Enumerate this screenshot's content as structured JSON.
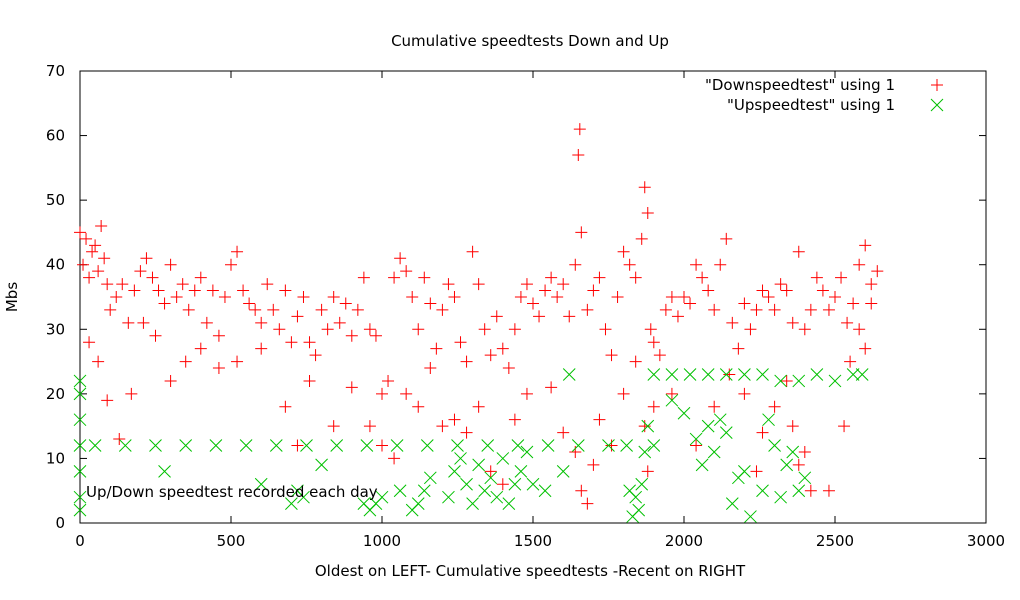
{
  "chart_data": {
    "type": "scatter",
    "title": "Cumulative speedtests Down and Up",
    "xlabel": "Oldest on LEFT- Cumulative speedtests -Recent on RIGHT",
    "ylabel": "Mbs",
    "xlim": [
      0,
      3000
    ],
    "ylim": [
      0,
      70
    ],
    "x_ticks": [
      "0",
      "500",
      "1000",
      "1500",
      "2000",
      "2500",
      "3000"
    ],
    "y_ticks": [
      "0",
      "10",
      "20",
      "30",
      "40",
      "50",
      "60",
      "70"
    ],
    "grid": false,
    "legend_position": "top-right",
    "annotation": "Up/Down speedtest recorded each day",
    "series": [
      {
        "name": "\"Downspeedtest\" using 1",
        "marker": "plus",
        "color": "#ff0000",
        "points": [
          [
            0,
            45
          ],
          [
            10,
            40
          ],
          [
            20,
            44
          ],
          [
            30,
            38
          ],
          [
            40,
            42
          ],
          [
            50,
            43
          ],
          [
            60,
            39
          ],
          [
            70,
            46
          ],
          [
            80,
            41
          ],
          [
            90,
            37
          ],
          [
            100,
            33
          ],
          [
            120,
            35
          ],
          [
            140,
            37
          ],
          [
            160,
            31
          ],
          [
            180,
            36
          ],
          [
            200,
            39
          ],
          [
            220,
            41
          ],
          [
            240,
            38
          ],
          [
            260,
            36
          ],
          [
            280,
            34
          ],
          [
            300,
            40
          ],
          [
            320,
            35
          ],
          [
            340,
            37
          ],
          [
            360,
            33
          ],
          [
            380,
            36
          ],
          [
            400,
            38
          ],
          [
            420,
            31
          ],
          [
            440,
            36
          ],
          [
            460,
            29
          ],
          [
            480,
            35
          ],
          [
            500,
            40
          ],
          [
            520,
            42
          ],
          [
            540,
            36
          ],
          [
            560,
            34
          ],
          [
            580,
            33
          ],
          [
            600,
            31
          ],
          [
            620,
            37
          ],
          [
            640,
            33
          ],
          [
            660,
            30
          ],
          [
            680,
            36
          ],
          [
            700,
            28
          ],
          [
            720,
            32
          ],
          [
            740,
            35
          ],
          [
            760,
            28
          ],
          [
            780,
            26
          ],
          [
            800,
            33
          ],
          [
            820,
            30
          ],
          [
            840,
            35
          ],
          [
            860,
            31
          ],
          [
            880,
            34
          ],
          [
            900,
            29
          ],
          [
            920,
            33
          ],
          [
            940,
            38
          ],
          [
            960,
            30
          ],
          [
            980,
            29
          ],
          [
            1000,
            20
          ],
          [
            1020,
            22
          ],
          [
            1040,
            38
          ],
          [
            1060,
            41
          ],
          [
            1080,
            39
          ],
          [
            1100,
            35
          ],
          [
            1120,
            30
          ],
          [
            1140,
            38
          ],
          [
            1160,
            34
          ],
          [
            1180,
            27
          ],
          [
            1200,
            33
          ],
          [
            1220,
            37
          ],
          [
            1240,
            35
          ],
          [
            1260,
            28
          ],
          [
            1280,
            25
          ],
          [
            1300,
            42
          ],
          [
            1320,
            37
          ],
          [
            1340,
            30
          ],
          [
            1360,
            26
          ],
          [
            1380,
            32
          ],
          [
            1400,
            27
          ],
          [
            1420,
            24
          ],
          [
            1440,
            30
          ],
          [
            1460,
            35
          ],
          [
            1480,
            37
          ],
          [
            1500,
            34
          ],
          [
            1520,
            32
          ],
          [
            1540,
            36
          ],
          [
            1560,
            38
          ],
          [
            1580,
            35
          ],
          [
            1600,
            37
          ],
          [
            1620,
            32
          ],
          [
            1640,
            40
          ],
          [
            1650,
            57
          ],
          [
            1655,
            61
          ],
          [
            1660,
            45
          ],
          [
            1680,
            33
          ],
          [
            1700,
            36
          ],
          [
            1720,
            38
          ],
          [
            1740,
            30
          ],
          [
            1760,
            26
          ],
          [
            1780,
            35
          ],
          [
            1800,
            42
          ],
          [
            1820,
            40
          ],
          [
            1840,
            38
          ],
          [
            1860,
            44
          ],
          [
            1870,
            52
          ],
          [
            1880,
            48
          ],
          [
            1890,
            30
          ],
          [
            1900,
            28
          ],
          [
            1920,
            26
          ],
          [
            1940,
            33
          ],
          [
            1960,
            35
          ],
          [
            1980,
            32
          ],
          [
            2000,
            35
          ],
          [
            2020,
            34
          ],
          [
            2040,
            40
          ],
          [
            2060,
            38
          ],
          [
            2080,
            36
          ],
          [
            2100,
            33
          ],
          [
            2120,
            40
          ],
          [
            2140,
            44
          ],
          [
            2160,
            31
          ],
          [
            2180,
            27
          ],
          [
            2200,
            34
          ],
          [
            2220,
            30
          ],
          [
            2240,
            33
          ],
          [
            2260,
            36
          ],
          [
            2280,
            35
          ],
          [
            2300,
            33
          ],
          [
            2320,
            37
          ],
          [
            2340,
            36
          ],
          [
            2360,
            31
          ],
          [
            2380,
            42
          ],
          [
            2400,
            30
          ],
          [
            2420,
            33
          ],
          [
            2440,
            38
          ],
          [
            2460,
            36
          ],
          [
            2480,
            33
          ],
          [
            2500,
            35
          ],
          [
            2520,
            38
          ],
          [
            2540,
            31
          ],
          [
            2560,
            34
          ],
          [
            2580,
            40
          ],
          [
            2600,
            43
          ],
          [
            2620,
            37
          ],
          [
            2640,
            39
          ],
          [
            30,
            28
          ],
          [
            60,
            25
          ],
          [
            90,
            19
          ],
          [
            130,
            13
          ],
          [
            170,
            20
          ],
          [
            210,
            31
          ],
          [
            250,
            29
          ],
          [
            300,
            22
          ],
          [
            350,
            25
          ],
          [
            400,
            27
          ],
          [
            460,
            24
          ],
          [
            520,
            25
          ],
          [
            600,
            27
          ],
          [
            680,
            18
          ],
          [
            720,
            12
          ],
          [
            760,
            22
          ],
          [
            840,
            15
          ],
          [
            900,
            21
          ],
          [
            960,
            15
          ],
          [
            1000,
            12
          ],
          [
            1040,
            10
          ],
          [
            1080,
            20
          ],
          [
            1120,
            18
          ],
          [
            1160,
            24
          ],
          [
            1200,
            15
          ],
          [
            1240,
            16
          ],
          [
            1280,
            14
          ],
          [
            1320,
            18
          ],
          [
            1360,
            8
          ],
          [
            1400,
            6
          ],
          [
            1440,
            16
          ],
          [
            1480,
            20
          ],
          [
            1560,
            21
          ],
          [
            1600,
            14
          ],
          [
            1640,
            11
          ],
          [
            1660,
            5
          ],
          [
            1680,
            3
          ],
          [
            1700,
            9
          ],
          [
            1720,
            16
          ],
          [
            1760,
            12
          ],
          [
            1800,
            20
          ],
          [
            1840,
            25
          ],
          [
            1870,
            15
          ],
          [
            1880,
            8
          ],
          [
            1900,
            18
          ],
          [
            1960,
            20
          ],
          [
            2040,
            12
          ],
          [
            2100,
            18
          ],
          [
            2150,
            23
          ],
          [
            2200,
            20
          ],
          [
            2240,
            8
          ],
          [
            2260,
            14
          ],
          [
            2300,
            18
          ],
          [
            2340,
            22
          ],
          [
            2360,
            15
          ],
          [
            2380,
            9
          ],
          [
            2400,
            11
          ],
          [
            2420,
            5
          ],
          [
            2480,
            5
          ],
          [
            2530,
            15
          ],
          [
            2550,
            25
          ],
          [
            2580,
            30
          ],
          [
            2600,
            27
          ],
          [
            2620,
            34
          ]
        ]
      },
      {
        "name": "\"Upspeedtest\" using 1",
        "marker": "cross",
        "color": "#00c000",
        "points": [
          [
            0,
            22
          ],
          [
            0,
            20
          ],
          [
            0,
            16
          ],
          [
            0,
            12
          ],
          [
            0,
            8
          ],
          [
            0,
            4
          ],
          [
            0,
            2
          ],
          [
            50,
            12
          ],
          [
            150,
            12
          ],
          [
            250,
            12
          ],
          [
            350,
            12
          ],
          [
            450,
            12
          ],
          [
            550,
            12
          ],
          [
            650,
            12
          ],
          [
            750,
            12
          ],
          [
            850,
            12
          ],
          [
            950,
            12
          ],
          [
            1050,
            12
          ],
          [
            1150,
            12
          ],
          [
            1250,
            12
          ],
          [
            1350,
            12
          ],
          [
            1450,
            12
          ],
          [
            1550,
            12
          ],
          [
            1650,
            12
          ],
          [
            1750,
            12
          ],
          [
            1810,
            12
          ],
          [
            280,
            8
          ],
          [
            600,
            6
          ],
          [
            700,
            3
          ],
          [
            720,
            5
          ],
          [
            740,
            4
          ],
          [
            800,
            9
          ],
          [
            940,
            3
          ],
          [
            960,
            2
          ],
          [
            980,
            3
          ],
          [
            1000,
            4
          ],
          [
            1060,
            5
          ],
          [
            1100,
            2
          ],
          [
            1120,
            3
          ],
          [
            1140,
            5
          ],
          [
            1160,
            7
          ],
          [
            1220,
            4
          ],
          [
            1240,
            8
          ],
          [
            1260,
            10
          ],
          [
            1280,
            6
          ],
          [
            1300,
            3
          ],
          [
            1320,
            9
          ],
          [
            1340,
            5
          ],
          [
            1360,
            7
          ],
          [
            1380,
            4
          ],
          [
            1400,
            10
          ],
          [
            1420,
            3
          ],
          [
            1440,
            6
          ],
          [
            1460,
            8
          ],
          [
            1480,
            11
          ],
          [
            1500,
            6
          ],
          [
            1540,
            5
          ],
          [
            1600,
            8
          ],
          [
            1620,
            23
          ],
          [
            1820,
            5
          ],
          [
            1840,
            4
          ],
          [
            1850,
            2
          ],
          [
            1830,
            1
          ],
          [
            1860,
            6
          ],
          [
            1870,
            11
          ],
          [
            1880,
            15
          ],
          [
            1900,
            12
          ],
          [
            1960,
            19
          ],
          [
            2000,
            17
          ],
          [
            2040,
            13
          ],
          [
            2060,
            9
          ],
          [
            2080,
            15
          ],
          [
            2100,
            11
          ],
          [
            2120,
            16
          ],
          [
            2140,
            14
          ],
          [
            2160,
            3
          ],
          [
            2180,
            7
          ],
          [
            2200,
            8
          ],
          [
            2220,
            1
          ],
          [
            2260,
            5
          ],
          [
            2280,
            16
          ],
          [
            2300,
            12
          ],
          [
            2320,
            4
          ],
          [
            2340,
            9
          ],
          [
            2360,
            11
          ],
          [
            2380,
            5
          ],
          [
            2400,
            7
          ],
          [
            1900,
            23
          ],
          [
            1960,
            23
          ],
          [
            2020,
            23
          ],
          [
            2080,
            23
          ],
          [
            2140,
            23
          ],
          [
            2200,
            23
          ],
          [
            2260,
            23
          ],
          [
            2320,
            22
          ],
          [
            2380,
            22
          ],
          [
            2440,
            23
          ],
          [
            2500,
            22
          ],
          [
            2560,
            23
          ],
          [
            2590,
            23
          ]
        ]
      }
    ]
  }
}
